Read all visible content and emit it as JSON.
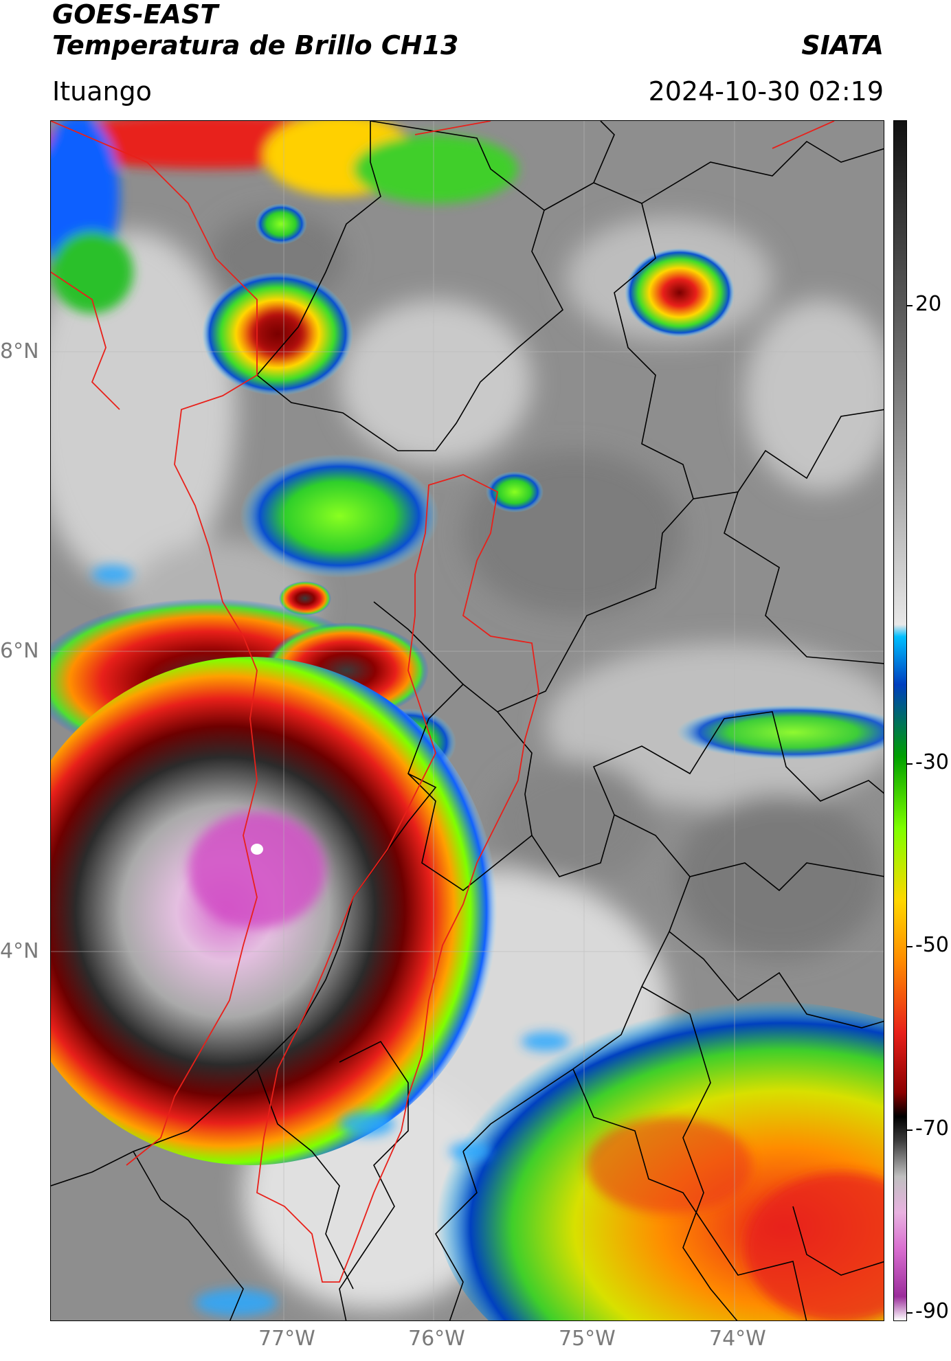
{
  "header": {
    "line1": "GOES-EAST",
    "line2": "Temperatura de Brillo CH13",
    "brand": "SIATA",
    "location": "Ituango",
    "datetime": "2024-10-30 02:19"
  },
  "map": {
    "latitude_labels": [
      "8°N",
      "6°N",
      "4°N"
    ],
    "longitude_labels": [
      "77°W",
      "76°W",
      "75°W",
      "74°W"
    ],
    "background_color": "#8f8f8f",
    "border_color_regional": "#000000",
    "border_color_basin": "#e8201a"
  },
  "colorbar": {
    "tick_labels": [
      "20",
      "-30",
      "-50",
      "-70",
      "-90"
    ],
    "palette": [
      "#ffffff",
      "#9b2d9b",
      "#d96fd0",
      "#e8b2e0",
      "#bfbfbf",
      "#3c3c3c",
      "#000000",
      "#8b0000",
      "#e8201a",
      "#ff8c00",
      "#ffd700",
      "#7fff00",
      "#00a000",
      "#003fbf",
      "#00bfff",
      "#e8e8e8",
      "#6e6e6e",
      "#111111"
    ]
  }
}
